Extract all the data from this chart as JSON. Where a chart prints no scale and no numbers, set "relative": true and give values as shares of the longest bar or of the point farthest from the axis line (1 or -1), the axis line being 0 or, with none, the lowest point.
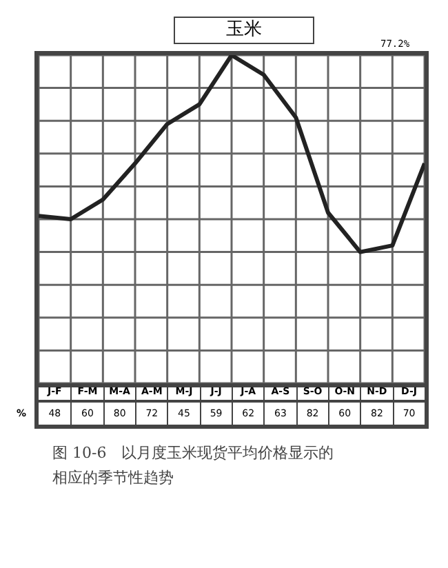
{
  "chart_data": {
    "type": "line",
    "title": "玉米",
    "relative": true,
    "categories": [
      null,
      null,
      null,
      null,
      null,
      null,
      null,
      null,
      null,
      null,
      null,
      null,
      null
    ],
    "series": [
      {
        "color": "#222222",
        "values": [
          0.51,
          0.5,
          0.56,
          0.67,
          0.79,
          0.85,
          1,
          0.94,
          0.81,
          0.52,
          0.4,
          0.42,
          0.67
        ]
      }
    ],
    "grid": true,
    "marker": "none",
    "line_style": "solid",
    "annotations": [
      "77.2%",
      "图 10-6　以月度玉米现货平均价格显示的相应的季节性趋势",
      "J-F",
      "F-M",
      "M-A",
      "A-M",
      "M-J",
      "J-J",
      "J-A",
      "A-S",
      "S-O",
      "O-N",
      "N-D",
      "D-J",
      "%",
      "48",
      "60",
      "80",
      "72",
      "45",
      "59",
      "62",
      "63",
      "82",
      "60",
      "82",
      "70"
    ]
  }
}
